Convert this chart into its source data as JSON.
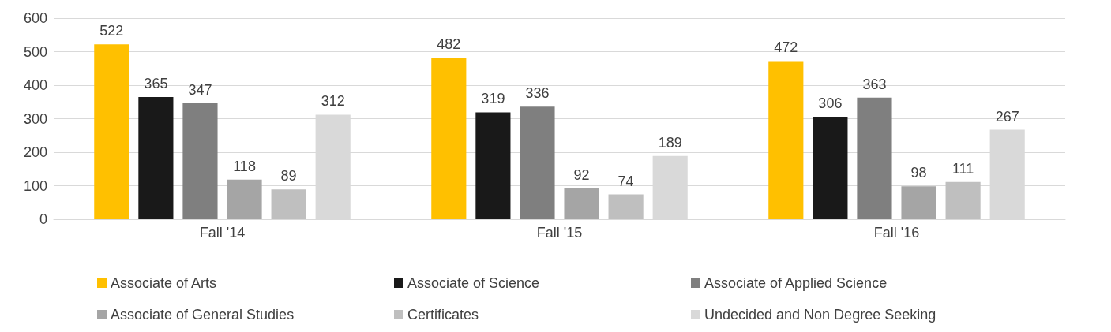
{
  "chart_data": {
    "type": "bar",
    "categories": [
      "Fall '14",
      "Fall '15",
      "Fall '16"
    ],
    "series": [
      {
        "name": "Associate of Arts",
        "color": "#ffc000",
        "values": [
          522,
          482,
          472
        ]
      },
      {
        "name": "Associate of Science",
        "color": "#191919",
        "values": [
          365,
          319,
          306
        ]
      },
      {
        "name": "Associate of Applied Science",
        "color": "#7f7f7f",
        "values": [
          347,
          336,
          363
        ]
      },
      {
        "name": "Associate of General Studies",
        "color": "#a5a5a5",
        "values": [
          118,
          92,
          98
        ]
      },
      {
        "name": "Certificates",
        "color": "#bfbfbf",
        "values": [
          89,
          74,
          111
        ]
      },
      {
        "name": "Undecided and Non Degree Seeking",
        "color": "#d9d9d9",
        "values": [
          312,
          189,
          267
        ]
      }
    ],
    "ylim": [
      0,
      600
    ],
    "yticks": [
      0,
      100,
      200,
      300,
      400,
      500,
      600
    ],
    "grid": "y",
    "legend": "bottom",
    "data_labels": true
  }
}
